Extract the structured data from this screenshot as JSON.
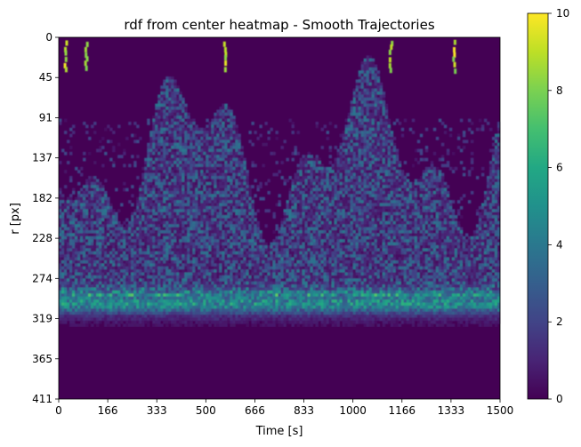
{
  "chart_data": {
    "type": "heatmap",
    "title": "rdf from center heatmap - Smooth Trajectories",
    "xlabel": "Time [s]",
    "ylabel": "r [px]",
    "xlim": [
      0,
      1500
    ],
    "ylim": [
      411,
      0
    ],
    "x_ticks": [
      "0",
      "166",
      "333",
      "500",
      "666",
      "833",
      "1000",
      "1166",
      "1333",
      "1500"
    ],
    "y_ticks": [
      "0",
      "45",
      "91",
      "137",
      "182",
      "228",
      "274",
      "319",
      "365",
      "411"
    ],
    "colorbar": {
      "colormap": "viridis",
      "min": 0,
      "max": 10,
      "ticks": [
        "0",
        "2",
        "4",
        "6",
        "8",
        "10"
      ]
    },
    "description_of_values": {
      "dense_ring_band_r": [
        285,
        319
      ],
      "dense_ring_peak_value": 7,
      "scattered_region_r": [
        91,
        300
      ],
      "empty_region_r": [
        330,
        411
      ],
      "bright_streaks_near_r0_at_time": [
        20,
        90,
        560,
        1125,
        1340
      ]
    }
  }
}
